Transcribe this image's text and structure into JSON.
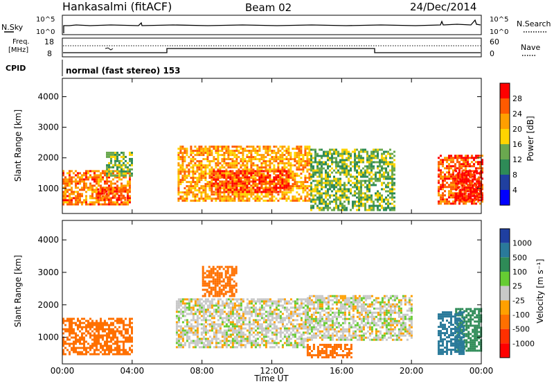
{
  "header": {
    "station": "Hankasalmi (fitACF)",
    "beam": "Beam 02",
    "date": "24/Dec/2014"
  },
  "top_panels": {
    "nsky_label": "N.Sky",
    "nsky_ticks": [
      "10^5",
      "10^0"
    ],
    "nsearch_label": "N.Search",
    "nsearch_ticks": [
      "10^5",
      "10^0"
    ],
    "freq_label_1": "Freq.",
    "freq_label_2": "[MHz]",
    "freq_ticks": [
      "18",
      "8"
    ],
    "nave_label": "Nave",
    "nave_ticks": [
      "60",
      "0"
    ],
    "cpid_label": "CPID",
    "cpid_text": "normal (fast stereo) 153"
  },
  "colorbars": {
    "power": {
      "label": "Power [dB]",
      "ticks": [
        "28",
        "24",
        "20",
        "16",
        "12",
        "8",
        "4"
      ],
      "colors": [
        "#0000ff",
        "#2040a0",
        "#2e8b57",
        "#6aa84f",
        "#ffd400",
        "#ff9f00",
        "#ff5a00",
        "#ff0000"
      ]
    },
    "velocity": {
      "label": "Velocity [m s⁻¹]",
      "ticks": [
        "1000",
        "500",
        "100",
        "25",
        "-25",
        "-100",
        "-500",
        "-1000"
      ],
      "colors": [
        "#1f3fa0",
        "#2a7a9a",
        "#2e8b57",
        "#66cc33",
        "#c8c8c8",
        "#ffa000",
        "#ff7000",
        "#ff3000",
        "#ff0000"
      ]
    }
  },
  "axes": {
    "ylabel": "Slant Range [km]",
    "xlabel": "Time UT",
    "yticks": [
      "4000",
      "3000",
      "2000",
      "1000"
    ],
    "xticks": [
      "00:00",
      "04:00",
      "08:00",
      "12:00",
      "16:00",
      "20:00",
      "00:00"
    ]
  },
  "chart_data": [
    {
      "type": "heatmap",
      "title": "Power",
      "xlabel": "Time UT",
      "ylabel": "Slant Range [km]",
      "xlim_hours": [
        0,
        24
      ],
      "ylim_km": [
        180,
        4600
      ],
      "colorbar_label": "Power [dB]",
      "colorbar_range": [
        0,
        32
      ],
      "regions": [
        {
          "t0": 0.0,
          "t1": 3.9,
          "r0": 500,
          "r1": 1600,
          "power": 24
        },
        {
          "t0": 2.5,
          "t1": 4.0,
          "r0": 1400,
          "r1": 2200,
          "power": 14
        },
        {
          "t0": 2.0,
          "t1": 3.6,
          "r0": 600,
          "r1": 1000,
          "power": 28
        },
        {
          "t0": 6.6,
          "t1": 14.2,
          "r0": 600,
          "r1": 2400,
          "power": 22
        },
        {
          "t0": 8.5,
          "t1": 13.0,
          "r0": 900,
          "r1": 1600,
          "power": 28
        },
        {
          "t0": 14.2,
          "t1": 19.0,
          "r0": 300,
          "r1": 2300,
          "power": 14
        },
        {
          "t0": 21.5,
          "t1": 24.0,
          "r0": 500,
          "r1": 2100,
          "power": 26
        },
        {
          "t0": 22.5,
          "t1": 24.0,
          "r0": 600,
          "r1": 1600,
          "power": 30
        }
      ]
    },
    {
      "type": "heatmap",
      "title": "Velocity",
      "xlabel": "Time UT",
      "ylabel": "Slant Range [km]",
      "xlim_hours": [
        0,
        24
      ],
      "ylim_km": [
        180,
        4600
      ],
      "colorbar_label": "Velocity [m s⁻¹]",
      "colorbar_range": [
        -1000,
        1000
      ],
      "regions": [
        {
          "t0": 0.0,
          "t1": 4.0,
          "r0": 500,
          "r1": 1600,
          "velocity": -150
        },
        {
          "t0": 6.5,
          "t1": 14.0,
          "r0": 700,
          "r1": 2200,
          "velocity": 0
        },
        {
          "t0": 8.0,
          "t1": 10.0,
          "r0": 2300,
          "r1": 3200,
          "velocity": -300
        },
        {
          "t0": 14.0,
          "t1": 16.5,
          "r0": 400,
          "r1": 800,
          "velocity": -200
        },
        {
          "t0": 14.0,
          "t1": 20.0,
          "r0": 900,
          "r1": 2300,
          "velocity": 0
        },
        {
          "t0": 22.5,
          "t1": 24.0,
          "r0": 600,
          "r1": 1900,
          "velocity": 200
        },
        {
          "t0": 21.5,
          "t1": 23.0,
          "r0": 500,
          "r1": 1800,
          "velocity": 600
        }
      ]
    }
  ]
}
